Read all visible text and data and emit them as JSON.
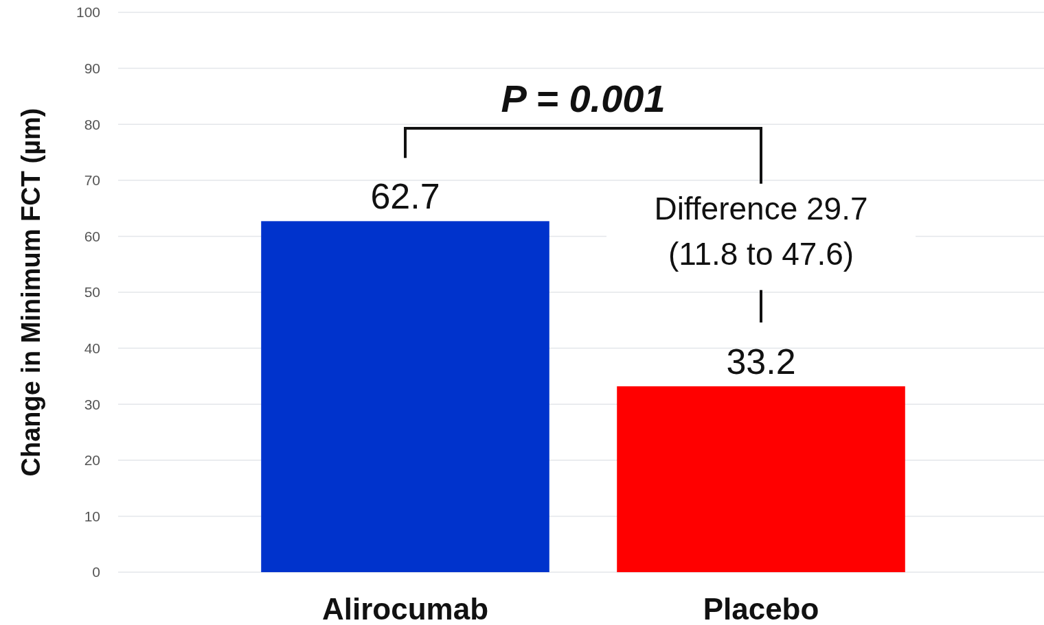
{
  "chart_data": {
    "type": "bar",
    "ylabel": "Change in Minimum FCT (µm)",
    "categories": [
      "Alirocumab",
      "Placebo"
    ],
    "values": [
      62.7,
      33.2
    ],
    "colors": [
      "#0033cc",
      "#ff0000"
    ],
    "ylim": [
      0,
      100
    ],
    "yticks": [
      0,
      10,
      20,
      30,
      40,
      50,
      60,
      70,
      80,
      90,
      100
    ],
    "grid": "y",
    "data_labels": true,
    "annotations": [
      "P = 0.001",
      "Difference 29.7",
      "(11.8 to 47.6)"
    ]
  }
}
